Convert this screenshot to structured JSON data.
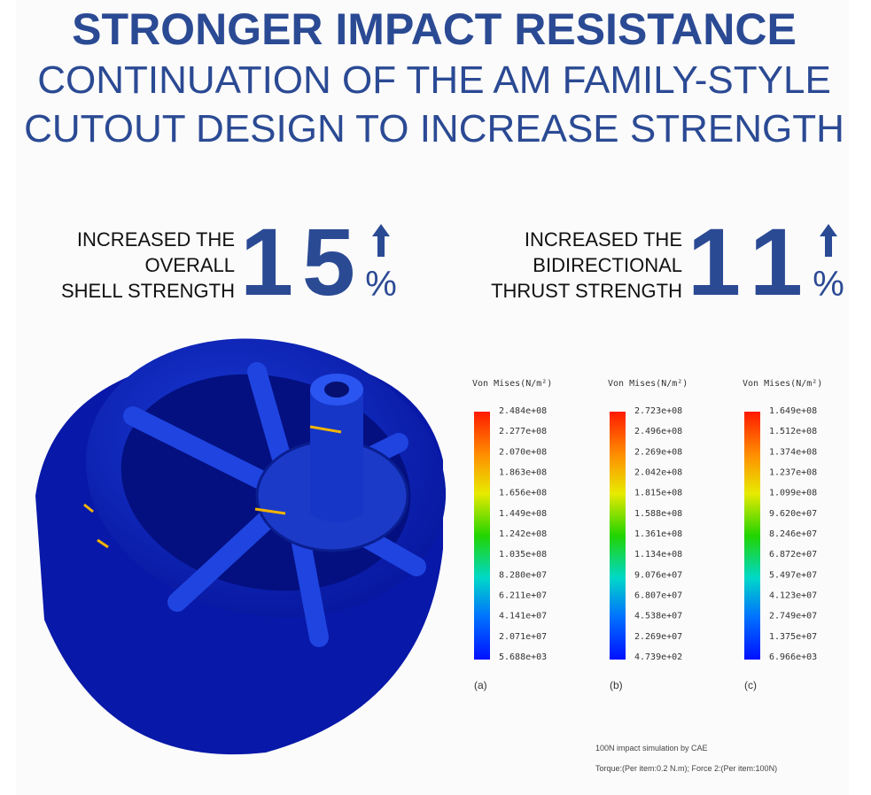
{
  "header": {
    "title": "STRONGER IMPACT RESISTANCE",
    "subtitle_lines": [
      "CONTINUATION OF THE AM FAMILY-STYLE",
      "CUTOUT DESIGN TO INCREASE STRENGTH"
    ]
  },
  "stats": [
    {
      "label_lines": [
        "INCREASED THE",
        "OVERALL",
        "SHELL STRENGTH"
      ],
      "number": 15,
      "unit": "%"
    },
    {
      "label_lines": [
        "INCREASED THE",
        "BIDIRECTIONAL",
        "THRUST STRENGTH"
      ],
      "number": 11,
      "unit": "%"
    }
  ],
  "legends": [
    {
      "title": "Von Mises(N/m²)",
      "caption": "(a)",
      "values": [
        "2.484e+08",
        "2.277e+08",
        "2.070e+08",
        "1.863e+08",
        "1.656e+08",
        "1.449e+08",
        "1.242e+08",
        "1.035e+08",
        "8.280e+07",
        "6.211e+07",
        "4.141e+07",
        "2.071e+07",
        "5.688e+03"
      ]
    },
    {
      "title": "Von Mises(N/m²)",
      "caption": "(b)",
      "values": [
        "2.723e+08",
        "2.496e+08",
        "2.269e+08",
        "2.042e+08",
        "1.815e+08",
        "1.588e+08",
        "1.361e+08",
        "1.134e+08",
        "9.076e+07",
        "6.807e+07",
        "4.538e+07",
        "2.269e+07",
        "4.739e+02"
      ]
    },
    {
      "title": "Von Mises(N/m²)",
      "caption": "(c)",
      "values": [
        "1.649e+08",
        "1.512e+08",
        "1.374e+08",
        "1.237e+08",
        "1.099e+08",
        "9.620e+07",
        "8.246e+07",
        "6.872e+07",
        "5.497e+07",
        "4.123e+07",
        "2.749e+07",
        "1.375e+07",
        "6.966e+03"
      ]
    }
  ],
  "footnote": [
    "100N impact simulation by CAE",
    "Torque:(Per item:0.2 N.m); Force 2:(Per item:100N)"
  ]
}
